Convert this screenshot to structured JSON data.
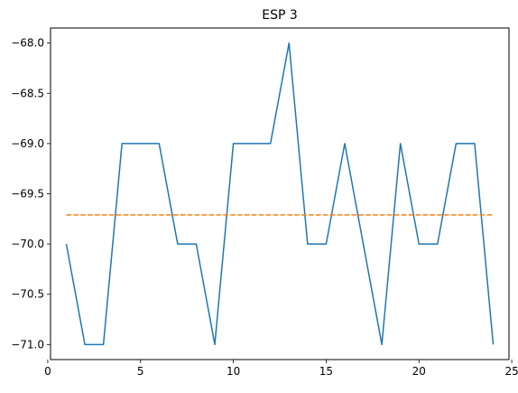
{
  "chart_data": {
    "type": "line",
    "title": "ESP 3",
    "xlabel": "",
    "ylabel": "",
    "xlim": [
      0.15,
      24.85
    ],
    "ylim": [
      -71.15,
      -67.85
    ],
    "grid": false,
    "xticks": [
      0,
      5,
      10,
      15,
      20,
      25
    ],
    "xtick_labels": [
      "0",
      "5",
      "10",
      "15",
      "20",
      "25"
    ],
    "yticks": [
      -68.0,
      -68.5,
      -69.0,
      -69.5,
      -70.0,
      -70.5,
      -71.0
    ],
    "ytick_labels": [
      "−68.0",
      "−68.5",
      "−69.0",
      "−69.5",
      "−70.0",
      "−70.5",
      "−71.0"
    ],
    "series": [
      {
        "style": "solid",
        "color": "#1f77b4",
        "x": [
          1,
          2,
          3,
          4,
          5,
          6,
          7,
          8,
          9,
          10,
          11,
          12,
          13,
          14,
          15,
          16,
          17,
          18,
          19,
          20,
          21,
          22,
          23,
          24
        ],
        "values": [
          -70,
          -71,
          -71,
          -69,
          -69,
          -69,
          -70,
          -70,
          -71,
          -69,
          -69,
          -69,
          -68,
          -70,
          -70,
          -69,
          -70,
          -71,
          -69,
          -70,
          -70,
          -69,
          -69,
          -71
        ]
      },
      {
        "style": "dashed",
        "color": "#ff7f0e",
        "x": [
          1,
          24
        ],
        "values": [
          -69.71,
          -69.71
        ]
      }
    ]
  }
}
